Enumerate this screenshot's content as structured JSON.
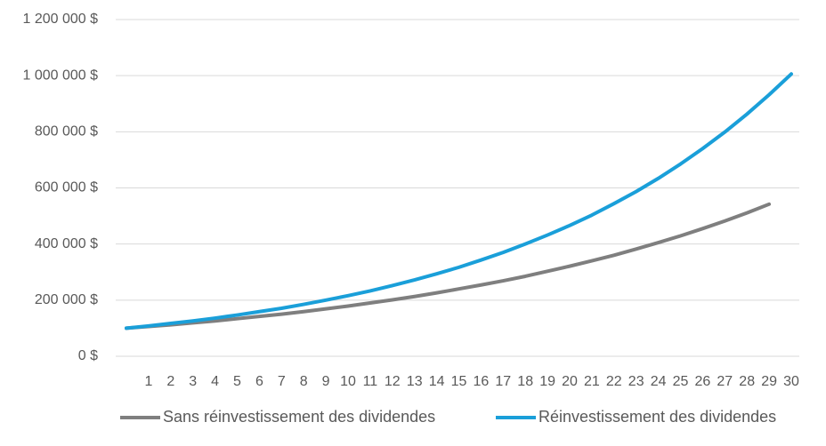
{
  "chart_data": {
    "type": "line",
    "categories": [
      null,
      "1",
      "2",
      "3",
      "4",
      "5",
      "6",
      "7",
      "8",
      "9",
      "10",
      "11",
      "12",
      "13",
      "14",
      "15",
      "16",
      "17",
      "18",
      "19",
      "20",
      "21",
      "22",
      "23",
      "24",
      "25",
      "26",
      "27",
      "28",
      "29",
      "30"
    ],
    "series": [
      {
        "name": "Sans réinvestissement des dividendes",
        "color": "#7f7f7f",
        "values": [
          100000,
          106000,
          112000,
          119000,
          126000,
          134000,
          142000,
          150000,
          159000,
          169000,
          179000,
          190000,
          201000,
          213000,
          226000,
          240000,
          254000,
          269000,
          285000,
          303000,
          321000,
          340000,
          360000,
          382000,
          405000,
          429000,
          455000,
          482000,
          511000,
          542000,
          null
        ]
      },
      {
        "name": "Réinvestissement des dividendes",
        "color": "#1a9fd9",
        "values": [
          100000,
          108000,
          117000,
          126000,
          136000,
          147000,
          159000,
          171000,
          185000,
          200000,
          216000,
          233000,
          252000,
          272000,
          294000,
          317000,
          343000,
          370000,
          400000,
          432000,
          466000,
          503000,
          544000,
          587000,
          634000,
          685000,
          740000,
          799000,
          863000,
          932000,
          1006000
        ]
      }
    ],
    "ylim": [
      0,
      1200000
    ],
    "yticks": [
      {
        "value": 0,
        "label": "0 $"
      },
      {
        "value": 200000,
        "label": "200 000 $"
      },
      {
        "value": 400000,
        "label": "400 000 $"
      },
      {
        "value": 600000,
        "label": "600 000 $"
      },
      {
        "value": 800000,
        "label": "800 000 $"
      },
      {
        "value": 1000000,
        "label": "1 000 000 $"
      },
      {
        "value": 1200000,
        "label": "1 200 000 $"
      }
    ],
    "grid": true,
    "legend": "bottom"
  }
}
